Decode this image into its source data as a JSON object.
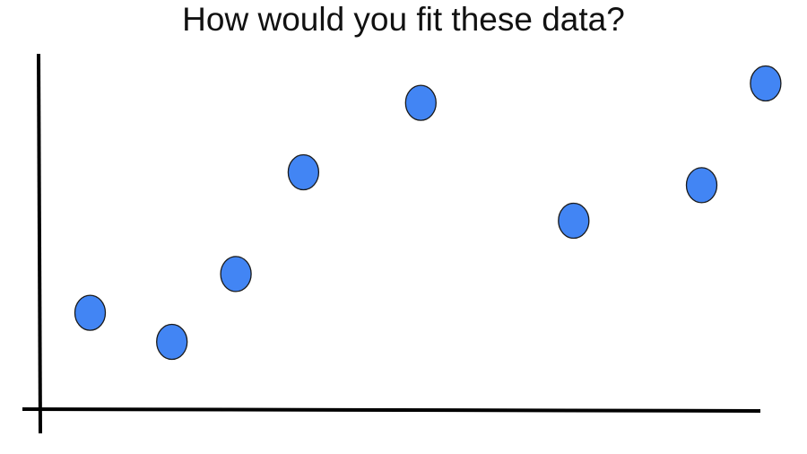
{
  "title": "How would you fit these data?",
  "colors": {
    "point_fill": "#4285f4",
    "point_stroke": "#1a1a1a",
    "axis": "#000000",
    "background": "#ffffff"
  },
  "chart_data": {
    "type": "scatter",
    "title": "How would you fit these data?",
    "xlabel": "",
    "ylabel": "",
    "grid": false,
    "axis_ticks": false,
    "xlim": [
      0,
      10
    ],
    "ylim": [
      0,
      10
    ],
    "points": [
      {
        "x": 0.7,
        "y": 2.4
      },
      {
        "x": 1.85,
        "y": 1.5
      },
      {
        "x": 2.75,
        "y": 3.6
      },
      {
        "x": 3.7,
        "y": 6.75
      },
      {
        "x": 5.35,
        "y": 8.9
      },
      {
        "x": 7.5,
        "y": 5.25
      },
      {
        "x": 9.3,
        "y": 6.35
      },
      {
        "x": 10.2,
        "y": 9.5
      }
    ]
  }
}
